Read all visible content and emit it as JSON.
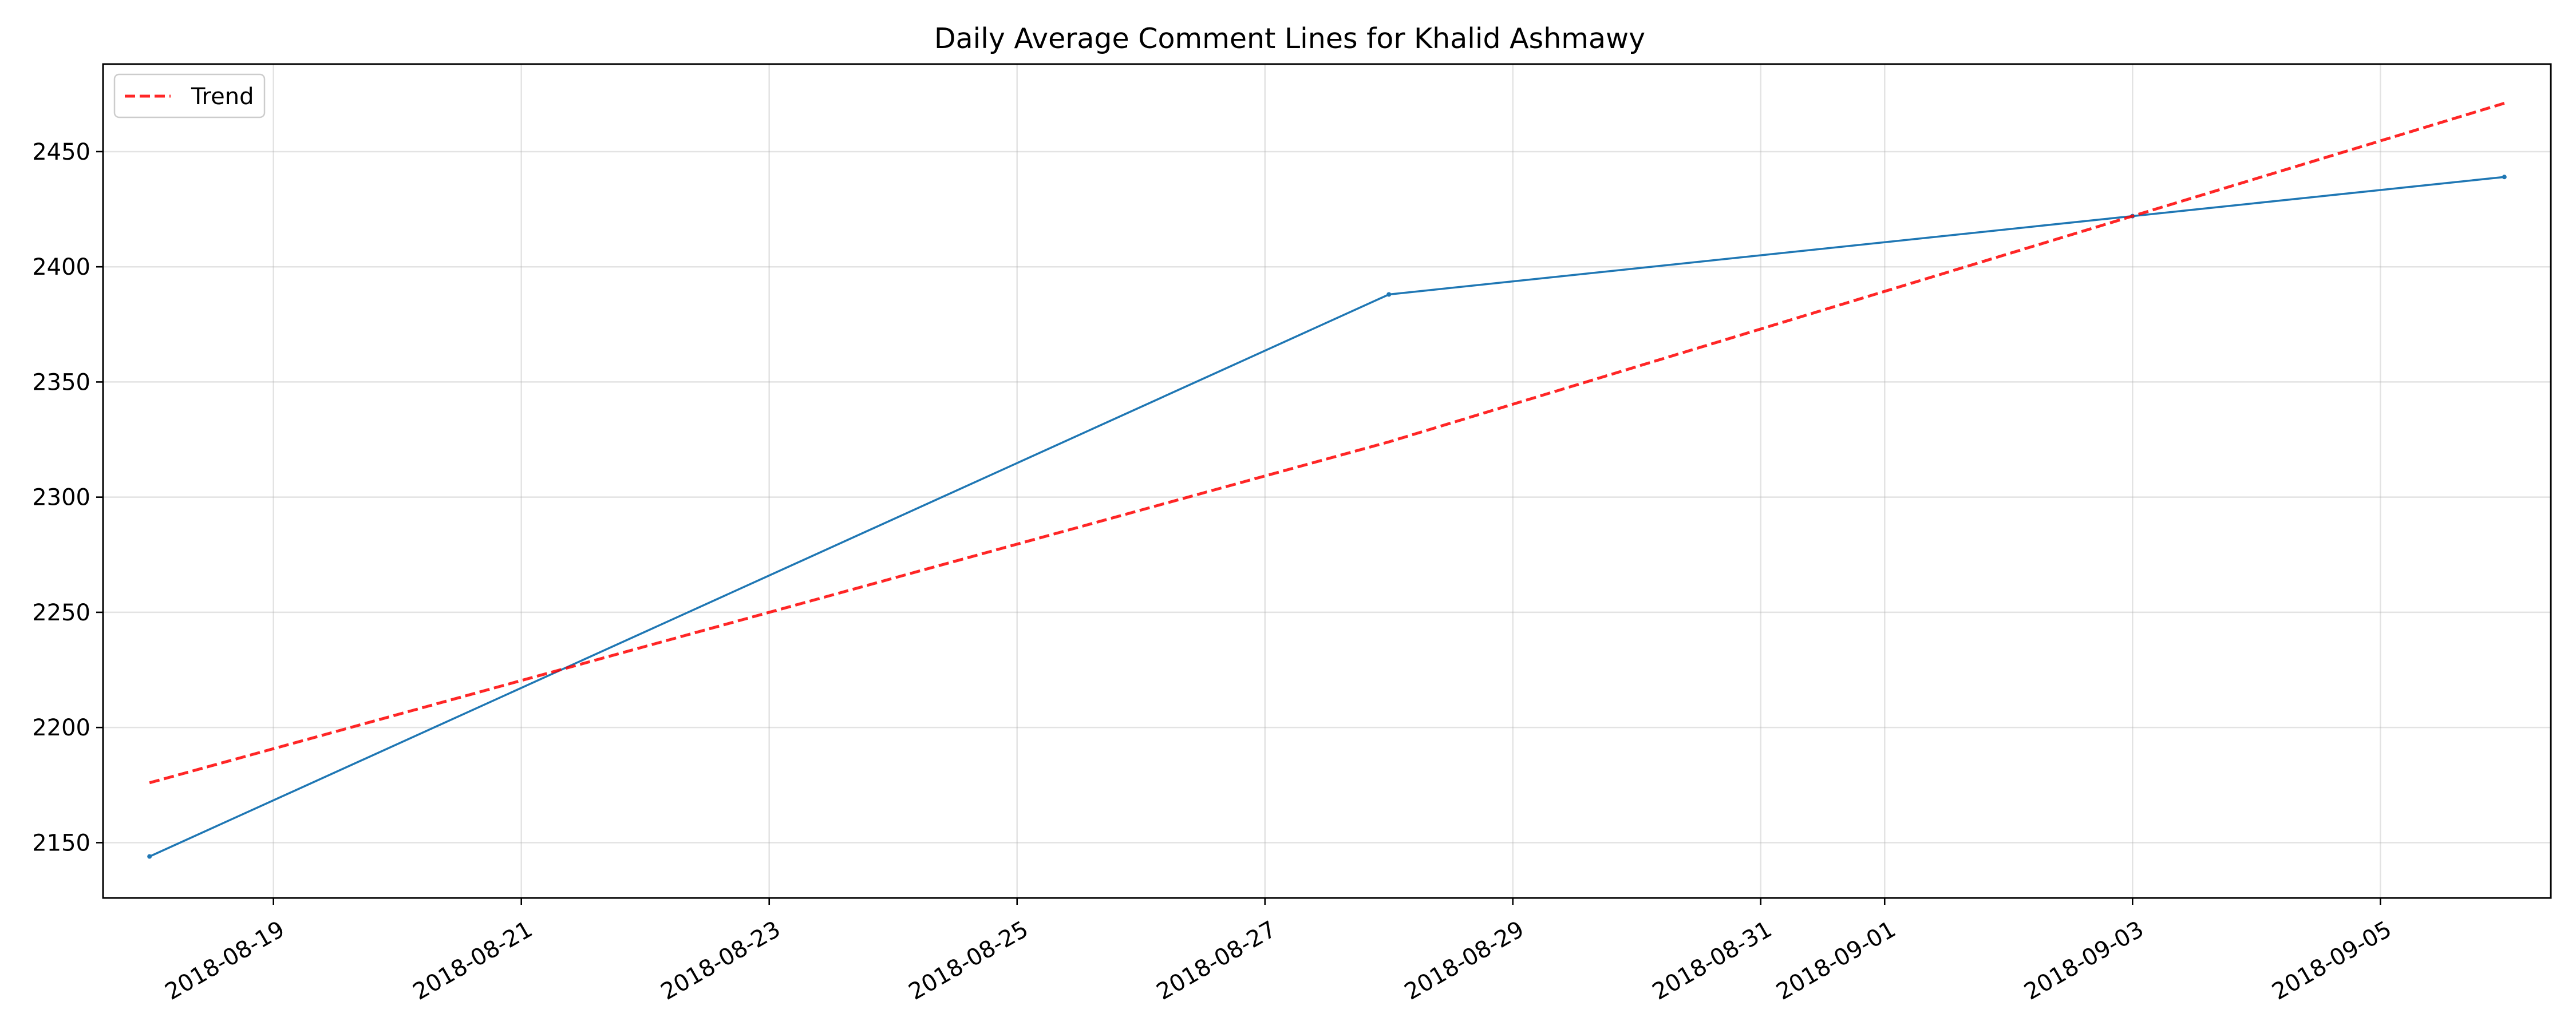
{
  "chart_data": {
    "type": "line",
    "title": "Daily Average Comment Lines for Khalid Ashmawy",
    "xlabel": "",
    "ylabel": "",
    "x_axis_type": "date",
    "xlim": [
      "2018-08-17T15:00",
      "2018-09-06T09:00"
    ],
    "ylim": [
      2126,
      2488
    ],
    "x_ticks": [
      "2018-08-19",
      "2018-08-21",
      "2018-08-23",
      "2018-08-25",
      "2018-08-27",
      "2018-08-29",
      "2018-08-31",
      "2018-09-01",
      "2018-09-03",
      "2018-09-05"
    ],
    "y_ticks": [
      2150,
      2200,
      2250,
      2300,
      2350,
      2400,
      2450
    ],
    "grid": true,
    "legend": {
      "position": "top-left",
      "entries": [
        "Trend"
      ]
    },
    "series": [
      {
        "color": "#1f77b4",
        "style": "solid",
        "x": [
          "2018-08-18",
          "2018-08-28",
          "2018-09-03",
          "2018-09-06"
        ],
        "y": [
          2144,
          2388,
          2422,
          2439
        ]
      },
      {
        "name": "Trend",
        "color": "#ff0000",
        "style": "dashed",
        "x": [
          "2018-08-18",
          "2018-08-28",
          "2018-09-03",
          "2018-09-06"
        ],
        "y": [
          2176,
          2324,
          2422,
          2471
        ]
      }
    ]
  }
}
